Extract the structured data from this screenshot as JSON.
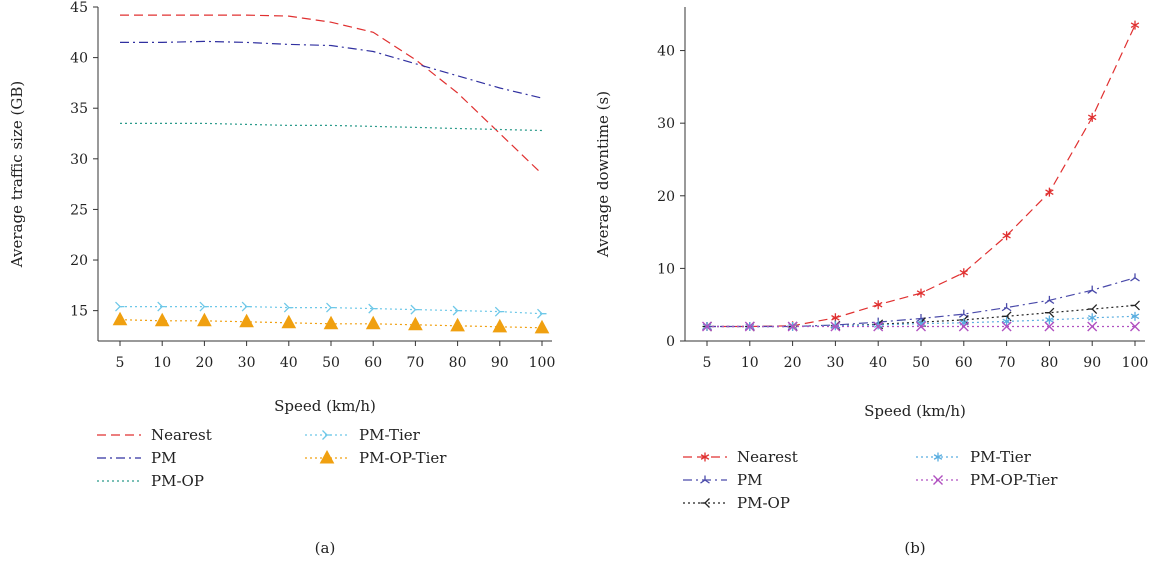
{
  "chart_data": [
    {
      "type": "line",
      "panel_label": "(a)",
      "xlabel": "Speed (km/h)",
      "ylabel": "Average traffic size (GB)",
      "categories": [
        "5",
        "10",
        "20",
        "30",
        "40",
        "50",
        "60",
        "70",
        "80",
        "90",
        "100"
      ],
      "ylim": [
        12,
        45
      ],
      "yticks": [
        15,
        20,
        25,
        30,
        35,
        40,
        45
      ],
      "grid": false,
      "legend_position": "bottom",
      "series": [
        {
          "name": "Nearest",
          "color": "#e03030",
          "dash": "dashed",
          "marker": "none",
          "values": [
            44.2,
            44.2,
            44.2,
            44.2,
            44.1,
            43.5,
            42.5,
            39.8,
            36.5,
            32.5,
            28.5
          ]
        },
        {
          "name": "PM",
          "color": "#3030a0",
          "dash": "dashdot",
          "marker": "none",
          "values": [
            41.5,
            41.5,
            41.6,
            41.5,
            41.3,
            41.2,
            40.6,
            39.4,
            38.2,
            37.0,
            36.0
          ]
        },
        {
          "name": "PM-OP",
          "color": "#2a9a8a",
          "dash": "dotted",
          "marker": "none",
          "values": [
            33.5,
            33.5,
            33.5,
            33.4,
            33.3,
            33.3,
            33.2,
            33.1,
            33.0,
            32.9,
            32.8
          ]
        },
        {
          "name": "PM-Tier",
          "color": "#6ec8e8",
          "dash": "dotted",
          "marker": "tri-right",
          "values": [
            15.4,
            15.4,
            15.4,
            15.4,
            15.3,
            15.3,
            15.2,
            15.1,
            15.0,
            14.9,
            14.7
          ]
        },
        {
          "name": "PM-OP-Tier",
          "color": "#f0a010",
          "dash": "dotted",
          "marker": "triangle",
          "values": [
            14.1,
            14.0,
            14.0,
            13.9,
            13.8,
            13.7,
            13.7,
            13.6,
            13.5,
            13.4,
            13.3
          ]
        }
      ]
    },
    {
      "type": "line",
      "panel_label": "(b)",
      "xlabel": "Speed (km/h)",
      "ylabel": "Average downtime (s)",
      "categories": [
        "5",
        "10",
        "20",
        "30",
        "40",
        "50",
        "60",
        "70",
        "80",
        "90",
        "100"
      ],
      "ylim": [
        0,
        45
      ],
      "yticks": [
        0,
        10,
        20,
        30,
        40
      ],
      "grid": false,
      "legend_position": "bottom",
      "series": [
        {
          "name": "Nearest",
          "color": "#e03030",
          "dash": "dashed",
          "marker": "star",
          "values": [
            2.0,
            2.0,
            2.1,
            3.2,
            5.0,
            6.6,
            9.4,
            14.5,
            20.5,
            30.8,
            43.5
          ]
        },
        {
          "name": "PM",
          "color": "#4a4aaa",
          "dash": "dashdot",
          "marker": "tri-up",
          "values": [
            2.0,
            2.0,
            2.0,
            2.2,
            2.6,
            3.1,
            3.7,
            4.6,
            5.6,
            7.0,
            8.7
          ]
        },
        {
          "name": "PM-OP",
          "color": "#222222",
          "dash": "dotted",
          "marker": "tri-left",
          "values": [
            2.0,
            2.0,
            2.0,
            2.1,
            2.3,
            2.6,
            2.9,
            3.4,
            3.9,
            4.4,
            4.9
          ]
        },
        {
          "name": "PM-Tier",
          "color": "#5aaee0",
          "dash": "dotted",
          "marker": "star",
          "values": [
            2.0,
            2.0,
            2.0,
            2.1,
            2.2,
            2.4,
            2.5,
            2.7,
            2.9,
            3.2,
            3.4
          ]
        },
        {
          "name": "PM-OP-Tier",
          "color": "#b050c0",
          "dash": "dotted",
          "marker": "x",
          "values": [
            2.0,
            2.0,
            2.0,
            2.0,
            2.0,
            2.0,
            2.0,
            2.0,
            2.0,
            2.0,
            2.0
          ]
        }
      ]
    }
  ]
}
